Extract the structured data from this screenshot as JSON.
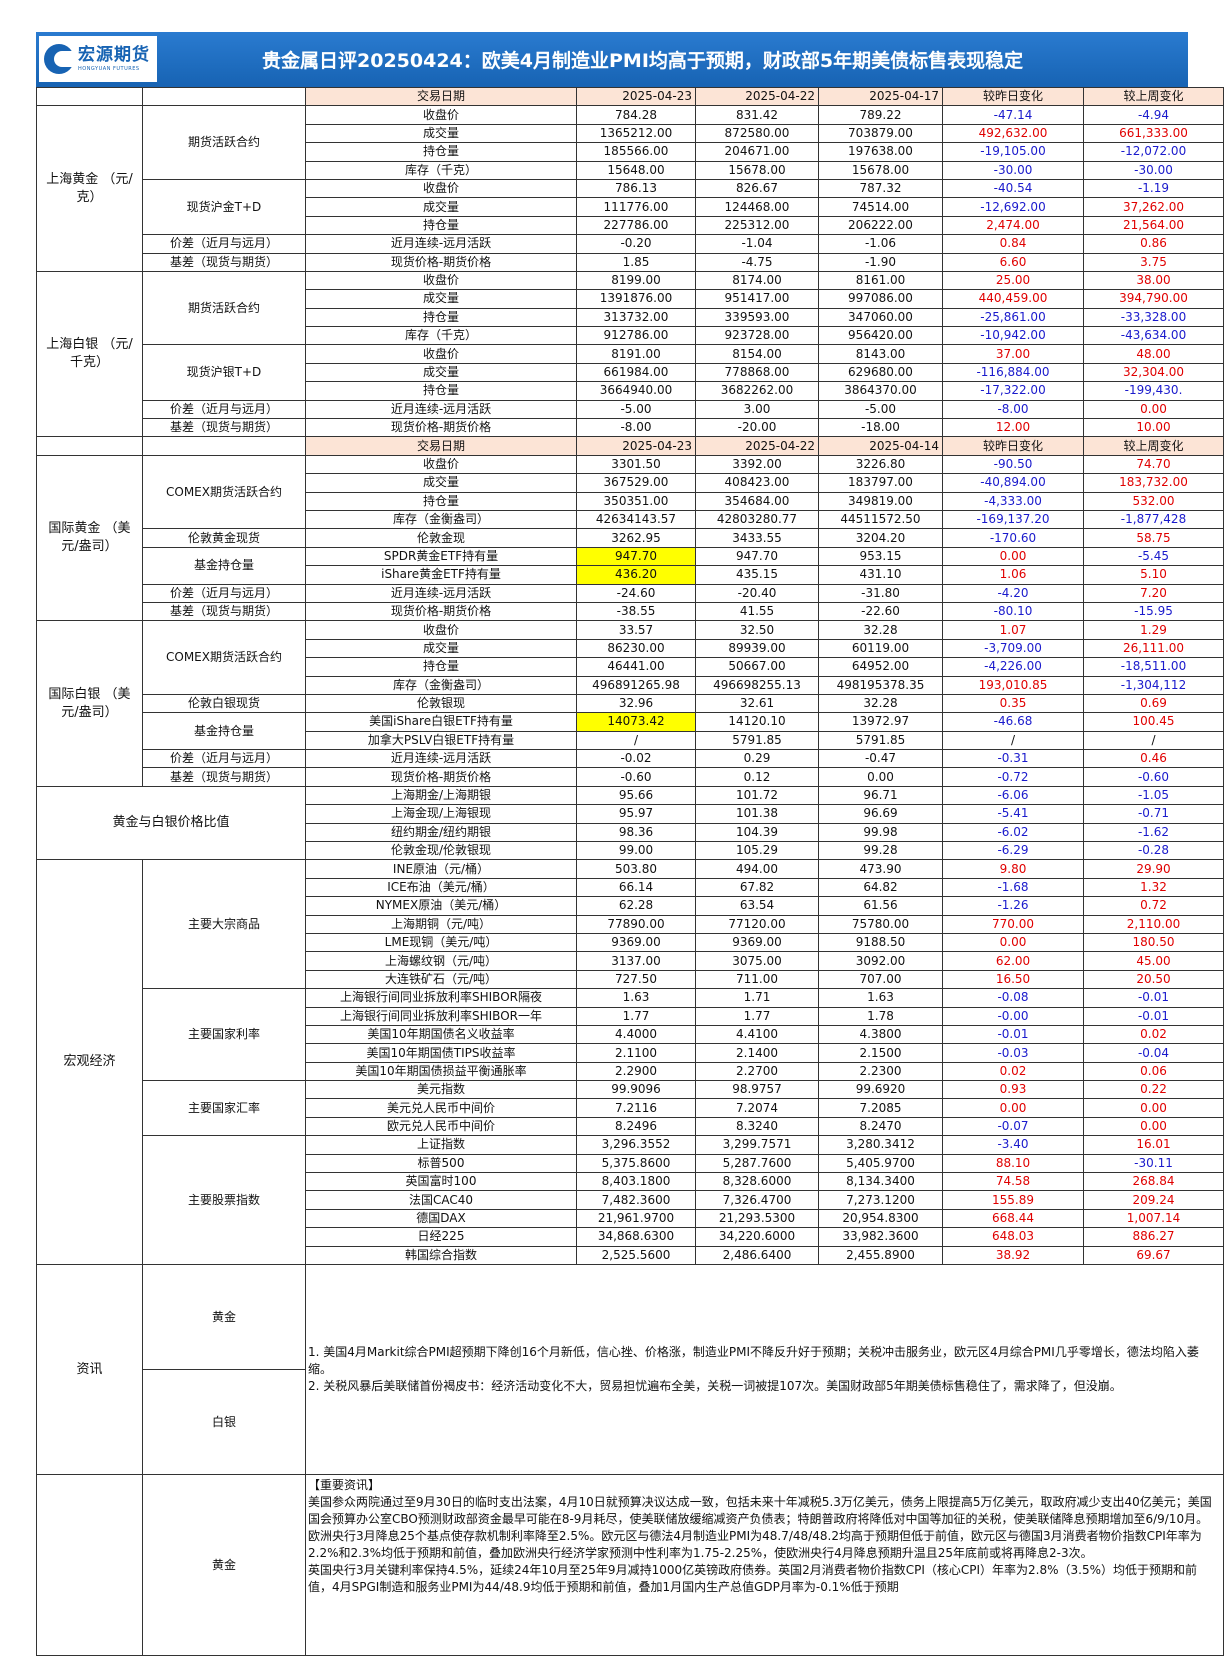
{
  "header": {
    "logo_cn": "宏源期货",
    "logo_en": "HONGYUAN FUTURES",
    "title": "贵金属日评20250424：欧美4月制造业PMI均高于预期，财政部5年期美债标售表现稳定"
  },
  "colors": {
    "band": "#1763b3",
    "header_row": "#fce4d6",
    "positive": "#e00000",
    "negative": "#1a1acc",
    "highlight": "#ffff00"
  },
  "sections": [
    {
      "header": [
        "交易日期",
        "2025-04-23",
        "2025-04-22",
        "2025-04-17",
        "较昨日变化",
        "较上周变化"
      ],
      "name": "上海黄金\n（元/克）",
      "groups": [
        {
          "name": "期货活跃合约",
          "rows": [
            {
              "label": "收盘价",
              "v": [
                "784.28",
                "831.42",
                "789.22",
                "-47.14",
                "-4.94"
              ]
            },
            {
              "label": "成交量",
              "v": [
                "1365212.00",
                "872580.00",
                "703879.00",
                "492,632.00",
                "661,333.00"
              ]
            },
            {
              "label": "持仓量",
              "v": [
                "185566.00",
                "204671.00",
                "197638.00",
                "-19,105.00",
                "-12,072.00"
              ]
            },
            {
              "label": "库存（千克）",
              "v": [
                "15648.00",
                "15678.00",
                "15678.00",
                "-30.00",
                "-30.00"
              ]
            }
          ]
        },
        {
          "name": "现货沪金T+D",
          "rows": [
            {
              "label": "收盘价",
              "v": [
                "786.13",
                "826.67",
                "787.32",
                "-40.54",
                "-1.19"
              ]
            },
            {
              "label": "成交量",
              "v": [
                "111776.00",
                "124468.00",
                "74514.00",
                "-12,692.00",
                "37,262.00"
              ]
            },
            {
              "label": "持仓量",
              "v": [
                "227786.00",
                "225312.00",
                "206222.00",
                "2,474.00",
                "21,564.00"
              ]
            }
          ]
        },
        {
          "name": "价差（近月与远月）",
          "rows": [
            {
              "label": "近月连续-远月活跃",
              "v": [
                "-0.20",
                "-1.04",
                "-1.06",
                "0.84",
                "0.86"
              ]
            }
          ]
        },
        {
          "name": "基差（现货与期货）",
          "rows": [
            {
              "label": "现货价格-期货价格",
              "v": [
                "1.85",
                "-4.75",
                "-1.90",
                "6.60",
                "3.75"
              ]
            }
          ]
        }
      ]
    },
    {
      "name": "上海白银\n（元/千克）",
      "groups": [
        {
          "name": "期货活跃合约",
          "rows": [
            {
              "label": "收盘价",
              "v": [
                "8199.00",
                "8174.00",
                "8161.00",
                "25.00",
                "38.00"
              ]
            },
            {
              "label": "成交量",
              "v": [
                "1391876.00",
                "951417.00",
                "997086.00",
                "440,459.00",
                "394,790.00"
              ]
            },
            {
              "label": "持仓量",
              "v": [
                "313732.00",
                "339593.00",
                "347060.00",
                "-25,861.00",
                "-33,328.00"
              ]
            },
            {
              "label": "库存（千克）",
              "v": [
                "912786.00",
                "923728.00",
                "956420.00",
                "-10,942.00",
                "-43,634.00"
              ]
            }
          ]
        },
        {
          "name": "现货沪银T+D",
          "rows": [
            {
              "label": "收盘价",
              "v": [
                "8191.00",
                "8154.00",
                "8143.00",
                "37.00",
                "48.00"
              ]
            },
            {
              "label": "成交量",
              "v": [
                "661984.00",
                "778868.00",
                "629680.00",
                "-116,884.00",
                "32,304.00"
              ]
            },
            {
              "label": "持仓量",
              "v": [
                "3664940.00",
                "3682262.00",
                "3864370.00",
                "-17,322.00",
                "-199,430."
              ]
            }
          ]
        },
        {
          "name": "价差（近月与远月）",
          "rows": [
            {
              "label": "近月连续-远月活跃",
              "v": [
                "-5.00",
                "3.00",
                "-5.00",
                "-8.00",
                "0.00"
              ]
            }
          ]
        },
        {
          "name": "基差（现货与期货）",
          "rows": [
            {
              "label": "现货价格-期货价格",
              "v": [
                "-8.00",
                "-20.00",
                "-18.00",
                "12.00",
                "10.00"
              ]
            }
          ]
        }
      ]
    },
    {
      "header": [
        "交易日期",
        "2025-04-23",
        "2025-04-22",
        "2025-04-14",
        "较昨日变化",
        "较上周变化"
      ],
      "name": "国际黄金\n（美元/盎司）",
      "groups": [
        {
          "name": "COMEX期货活跃合约",
          "rows": [
            {
              "label": "收盘价",
              "v": [
                "3301.50",
                "3392.00",
                "3226.80",
                "-90.50",
                "74.70"
              ]
            },
            {
              "label": "成交量",
              "v": [
                "367529.00",
                "408423.00",
                "183797.00",
                "-40,894.00",
                "183,732.00"
              ]
            },
            {
              "label": "持仓量",
              "v": [
                "350351.00",
                "354684.00",
                "349819.00",
                "-4,333.00",
                "532.00"
              ]
            },
            {
              "label": "库存（金衡盎司）",
              "v": [
                "42634143.57",
                "42803280.77",
                "44511572.50",
                "-169,137.20",
                "-1,877,428"
              ]
            }
          ]
        },
        {
          "name": "伦敦黄金现货",
          "rows": [
            {
              "label": "伦敦金现",
              "v": [
                "3262.95",
                "3433.55",
                "3204.20",
                "-170.60",
                "58.75"
              ]
            }
          ]
        },
        {
          "name": "基金持仓量",
          "rows": [
            {
              "label": "SPDR黄金ETF持有量",
              "v": [
                "947.70",
                "947.70",
                "953.15",
                "0.00",
                "-5.45"
              ],
              "highlight": true
            },
            {
              "label": "iShare黄金ETF持有量",
              "v": [
                "436.20",
                "435.15",
                "431.10",
                "1.06",
                "5.10"
              ],
              "highlight": true
            }
          ]
        },
        {
          "name": "价差（近月与远月）",
          "rows": [
            {
              "label": "近月连续-远月活跃",
              "v": [
                "-24.60",
                "-20.40",
                "-31.80",
                "-4.20",
                "7.20"
              ]
            }
          ]
        },
        {
          "name": "基差（现货与期货）",
          "rows": [
            {
              "label": "现货价格-期货价格",
              "v": [
                "-38.55",
                "41.55",
                "-22.60",
                "-80.10",
                "-15.95"
              ]
            }
          ]
        }
      ]
    },
    {
      "name": "国际白银\n（美元/盎司）",
      "groups": [
        {
          "name": "COMEX期货活跃合约",
          "rows": [
            {
              "label": "收盘价",
              "v": [
                "33.57",
                "32.50",
                "32.28",
                "1.07",
                "1.29"
              ]
            },
            {
              "label": "成交量",
              "v": [
                "86230.00",
                "89939.00",
                "60119.00",
                "-3,709.00",
                "26,111.00"
              ]
            },
            {
              "label": "持仓量",
              "v": [
                "46441.00",
                "50667.00",
                "64952.00",
                "-4,226.00",
                "-18,511.00"
              ]
            },
            {
              "label": "库存（金衡盎司）",
              "v": [
                "496891265.98",
                "496698255.13",
                "498195378.35",
                "193,010.85",
                "-1,304,112"
              ]
            }
          ]
        },
        {
          "name": "伦敦白银现货",
          "rows": [
            {
              "label": "伦敦银现",
              "v": [
                "32.96",
                "32.61",
                "32.28",
                "0.35",
                "0.69"
              ]
            }
          ]
        },
        {
          "name": "基金持仓量",
          "rows": [
            {
              "label": "美国iShare白银ETF持有量",
              "v": [
                "14073.42",
                "14120.10",
                "13972.97",
                "-46.68",
                "100.45"
              ],
              "highlight": true
            },
            {
              "label": "加拿大PSLV白银ETF持有量",
              "v": [
                "/",
                "5791.85",
                "5791.85",
                "/",
                "/"
              ]
            }
          ]
        },
        {
          "name": "价差（近月与远月）",
          "rows": [
            {
              "label": "近月连续-远月活跃",
              "v": [
                "-0.02",
                "0.29",
                "-0.47",
                "-0.31",
                "0.46"
              ]
            }
          ]
        },
        {
          "name": "基差（现货与期货）",
          "rows": [
            {
              "label": "现货价格-期货价格",
              "v": [
                "-0.60",
                "0.12",
                "0.00",
                "-0.72",
                "-0.60"
              ]
            }
          ]
        }
      ]
    },
    {
      "name": "黄金与白银价格比值",
      "rows": [
        {
          "label": "上海期金/上海期银",
          "v": [
            "95.66",
            "101.72",
            "96.71",
            "-6.06",
            "-1.05"
          ]
        },
        {
          "label": "上海金现/上海银现",
          "v": [
            "95.97",
            "101.38",
            "96.69",
            "-5.41",
            "-0.71"
          ]
        },
        {
          "label": "纽约期金/纽约期银",
          "v": [
            "98.36",
            "104.39",
            "99.98",
            "-6.02",
            "-1.62"
          ]
        },
        {
          "label": "伦敦金现/伦敦银现",
          "v": [
            "99.00",
            "105.29",
            "99.28",
            "-6.29",
            "-0.28"
          ]
        }
      ]
    },
    {
      "name": "宏观经济",
      "groups": [
        {
          "name": "主要大宗商品",
          "rows": [
            {
              "label": "INE原油（元/桶）",
              "v": [
                "503.80",
                "494.00",
                "473.90",
                "9.80",
                "29.90"
              ]
            },
            {
              "label": "ICE布油（美元/桶）",
              "v": [
                "66.14",
                "67.82",
                "64.82",
                "-1.68",
                "1.32"
              ]
            },
            {
              "label": "NYMEX原油（美元/桶）",
              "v": [
                "62.28",
                "63.54",
                "61.56",
                "-1.26",
                "0.72"
              ]
            },
            {
              "label": "上海期铜（元/吨）",
              "v": [
                "77890.00",
                "77120.00",
                "75780.00",
                "770.00",
                "2,110.00"
              ]
            },
            {
              "label": "LME现铜（美元/吨）",
              "v": [
                "9369.00",
                "9369.00",
                "9188.50",
                "0.00",
                "180.50"
              ]
            },
            {
              "label": "上海螺纹钢（元/吨）",
              "v": [
                "3137.00",
                "3075.00",
                "3092.00",
                "62.00",
                "45.00"
              ]
            },
            {
              "label": "大连铁矿石（元/吨）",
              "v": [
                "727.50",
                "711.00",
                "707.00",
                "16.50",
                "20.50"
              ]
            }
          ]
        },
        {
          "name": "主要国家利率",
          "rows": [
            {
              "label": "上海银行间同业拆放利率SHIBOR隔夜",
              "v": [
                "1.63",
                "1.71",
                "1.63",
                "-0.08",
                "-0.01"
              ]
            },
            {
              "label": "上海银行间同业拆放利率SHIBOR一年",
              "v": [
                "1.77",
                "1.77",
                "1.78",
                "-0.00",
                "-0.01"
              ]
            },
            {
              "label": "美国10年期国债名义收益率",
              "v": [
                "4.4000",
                "4.4100",
                "4.3800",
                "-0.01",
                "0.02"
              ]
            },
            {
              "label": "美国10年期国债TIPS收益率",
              "v": [
                "2.1100",
                "2.1400",
                "2.1500",
                "-0.03",
                "-0.04"
              ]
            },
            {
              "label": "美国10年期国债损益平衡通胀率",
              "v": [
                "2.2900",
                "2.2700",
                "2.2300",
                "0.02",
                "0.06"
              ]
            }
          ]
        },
        {
          "name": "主要国家汇率",
          "rows": [
            {
              "label": "美元指数",
              "v": [
                "99.9096",
                "98.9757",
                "99.6920",
                "0.93",
                "0.22"
              ]
            },
            {
              "label": "美元兑人民币中间价",
              "v": [
                "7.2116",
                "7.2074",
                "7.2085",
                "0.00",
                "0.00"
              ]
            },
            {
              "label": "欧元兑人民币中间价",
              "v": [
                "8.2496",
                "8.3240",
                "8.2470",
                "-0.07",
                "0.00"
              ]
            }
          ]
        },
        {
          "name": "主要股票指数",
          "rows": [
            {
              "label": "上证指数",
              "v": [
                "3,296.3552",
                "3,299.7571",
                "3,280.3412",
                "-3.40",
                "16.01"
              ]
            },
            {
              "label": "标普500",
              "v": [
                "5,375.8600",
                "5,287.7600",
                "5,405.9700",
                "88.10",
                "-30.11"
              ]
            },
            {
              "label": "英国富时100",
              "v": [
                "8,403.1800",
                "8,328.6000",
                "8,134.3400",
                "74.58",
                "268.84"
              ]
            },
            {
              "label": "法国CAC40",
              "v": [
                "7,482.3600",
                "7,326.4700",
                "7,273.1200",
                "155.89",
                "209.24"
              ]
            },
            {
              "label": "德国DAX",
              "v": [
                "21,961.9700",
                "21,293.5300",
                "20,954.8300",
                "668.44",
                "1,007.14"
              ]
            },
            {
              "label": "日经225",
              "v": [
                "34,868.6300",
                "34,220.6000",
                "33,982.3600",
                "648.03",
                "886.27"
              ]
            },
            {
              "label": "韩国综合指数",
              "v": [
                "2,525.5600",
                "2,486.6400",
                "2,455.8900",
                "38.92",
                "69.67"
              ]
            }
          ]
        }
      ]
    }
  ],
  "news": {
    "label": "资讯",
    "gold_label": "黄金",
    "silver_label": "白银",
    "items": [
      "1. 美国4月Markit综合PMI超预期下降创16个月新低，信心挫、价格涨，制造业PMI不降反升好于预期；关税冲击服务业，欧元区4月综合PMI几乎零增长，德法均陷入萎缩。",
      "2. 关税风暴后美联储首份褐皮书：经济活动变化不大，贸易担忧遍布全美，关税一词被提107次。美国财政部5年期美债标售稳住了，需求降了，但没崩。"
    ]
  },
  "important": {
    "label": "黄金",
    "heading": "【重要资讯】",
    "paragraphs": [
      "美国参众两院通过至9月30日的临时支出法案，4月10日就预算决议达成一致，包括未来十年减税5.3万亿美元，债务上限提高5万亿美元，取政府减少支出40亿美元；美国国会预算办公室CBO预测财政部资金最早可能在8-9月耗尽，使美联储放缓缩减资产负债表；特朗普政府将降低对中国等加征的关税，使美联储降息预期增加至6/9/10月。",
      "欧洲央行3月降息25个基点使存款机制利率降至2.5%。欧元区与德法4月制造业PMI为48.7/48/48.2均高于预期但低于前值，欧元区与德国3月消费者物价指数CPI年率为2.2%和2.3%均低于预期和前值，叠加欧洲央行经济学家预测中性利率为1.75-2.25%，使欧洲央行4月降息预期升温且25年底前或将再降息2-3次。",
      "英国央行3月关键利率保持4.5%，延续24年10月至25年9月减持1000亿英镑政府债券。英国2月消费者物价指数CPI（核心CPI）年率为2.8%（3.5%）均低于预期和前值，4月SPGI制造和服务业PMI为44/48.9均低于预期和前值，叠加1月国内生产总值GDP月率为-0.1%低于预期"
    ]
  }
}
